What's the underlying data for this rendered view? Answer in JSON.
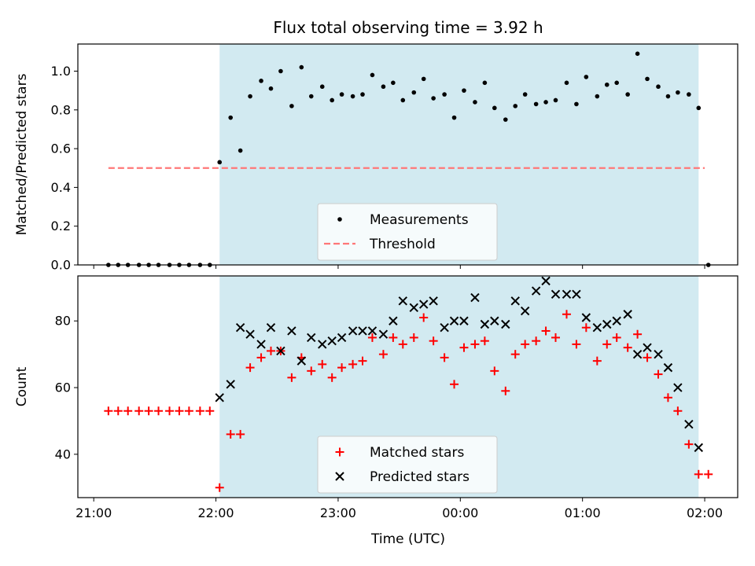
{
  "chart_data": [
    {
      "type": "scatter",
      "title": "Flux total observing time = 3.92 h",
      "xlabel": "",
      "ylabel": "Matched/Predicted stars",
      "ylim": [
        0,
        1.14
      ],
      "yticks": [
        "0.0",
        "0.2",
        "0.4",
        "0.6",
        "0.8",
        "1.0"
      ],
      "ytick_values": [
        0,
        0.2,
        0.4,
        0.6,
        0.8,
        1.0
      ],
      "xlim_hours": [
        20.87,
        26.27
      ],
      "shaded_interval_hours": [
        22.03,
        25.95
      ],
      "shaded_color": "#add8e6",
      "legend_position": "lower-center",
      "series": [
        {
          "name": "Measurements",
          "marker": "dot",
          "color": "#000000",
          "points": [
            [
              21.12,
              0
            ],
            [
              21.2,
              0
            ],
            [
              21.28,
              0
            ],
            [
              21.37,
              0
            ],
            [
              21.45,
              0
            ],
            [
              21.53,
              0
            ],
            [
              21.62,
              0
            ],
            [
              21.7,
              0
            ],
            [
              21.78,
              0
            ],
            [
              21.87,
              0
            ],
            [
              21.95,
              0
            ],
            [
              22.03,
              0.53
            ],
            [
              22.12,
              0.76
            ],
            [
              22.2,
              0.59
            ],
            [
              22.28,
              0.87
            ],
            [
              22.37,
              0.95
            ],
            [
              22.45,
              0.91
            ],
            [
              22.53,
              1.0
            ],
            [
              22.62,
              0.82
            ],
            [
              22.7,
              1.02
            ],
            [
              22.78,
              0.87
            ],
            [
              22.87,
              0.92
            ],
            [
              22.95,
              0.85
            ],
            [
              23.03,
              0.88
            ],
            [
              23.12,
              0.87
            ],
            [
              23.2,
              0.88
            ],
            [
              23.28,
              0.98
            ],
            [
              23.37,
              0.92
            ],
            [
              23.45,
              0.94
            ],
            [
              23.53,
              0.85
            ],
            [
              23.62,
              0.89
            ],
            [
              23.7,
              0.96
            ],
            [
              23.78,
              0.86
            ],
            [
              23.87,
              0.88
            ],
            [
              23.95,
              0.76
            ],
            [
              24.03,
              0.9
            ],
            [
              24.12,
              0.84
            ],
            [
              24.2,
              0.94
            ],
            [
              24.28,
              0.81
            ],
            [
              24.37,
              0.75
            ],
            [
              24.45,
              0.82
            ],
            [
              24.53,
              0.88
            ],
            [
              24.62,
              0.83
            ],
            [
              24.7,
              0.84
            ],
            [
              24.78,
              0.85
            ],
            [
              24.87,
              0.94
            ],
            [
              24.95,
              0.83
            ],
            [
              25.03,
              0.97
            ],
            [
              25.12,
              0.87
            ],
            [
              25.2,
              0.93
            ],
            [
              25.28,
              0.94
            ],
            [
              25.37,
              0.88
            ],
            [
              25.45,
              1.09
            ],
            [
              25.53,
              0.96
            ],
            [
              25.62,
              0.92
            ],
            [
              25.7,
              0.87
            ],
            [
              25.78,
              0.89
            ],
            [
              25.87,
              0.88
            ],
            [
              25.95,
              0.81
            ],
            [
              26.03,
              0
            ]
          ]
        },
        {
          "name": "Threshold",
          "style": "dashed-line",
          "color": "#ff7777",
          "points": [
            [
              21.12,
              0.5
            ],
            [
              26.0,
              0.5
            ]
          ]
        }
      ]
    },
    {
      "type": "scatter",
      "title": "",
      "xlabel": "Time (UTC)",
      "ylabel": "Count",
      "ylim": [
        27,
        93.5
      ],
      "yticks": [
        "40",
        "60",
        "80"
      ],
      "ytick_values": [
        40,
        60,
        80
      ],
      "xticks": [
        "21:00",
        "22:00",
        "23:00",
        "00:00",
        "01:00",
        "02:00"
      ],
      "xtick_values": [
        21,
        22,
        23,
        24,
        25,
        26
      ],
      "xlim_hours": [
        20.87,
        26.27
      ],
      "shaded_interval_hours": [
        22.03,
        25.95
      ],
      "shaded_color": "#add8e6",
      "legend_position": "lower-center",
      "series": [
        {
          "name": "Matched stars",
          "marker": "plus",
          "color": "#ff0000",
          "points": [
            [
              21.12,
              53
            ],
            [
              21.2,
              53
            ],
            [
              21.28,
              53
            ],
            [
              21.37,
              53
            ],
            [
              21.45,
              53
            ],
            [
              21.53,
              53
            ],
            [
              21.62,
              53
            ],
            [
              21.7,
              53
            ],
            [
              21.78,
              53
            ],
            [
              21.87,
              53
            ],
            [
              21.95,
              53
            ],
            [
              22.03,
              30
            ],
            [
              22.12,
              46
            ],
            [
              22.2,
              46
            ],
            [
              22.28,
              66
            ],
            [
              22.37,
              69
            ],
            [
              22.45,
              71
            ],
            [
              22.53,
              71
            ],
            [
              22.62,
              63
            ],
            [
              22.7,
              69
            ],
            [
              22.78,
              65
            ],
            [
              22.87,
              67
            ],
            [
              22.95,
              63
            ],
            [
              23.03,
              66
            ],
            [
              23.12,
              67
            ],
            [
              23.2,
              68
            ],
            [
              23.28,
              75
            ],
            [
              23.37,
              70
            ],
            [
              23.45,
              75
            ],
            [
              23.53,
              73
            ],
            [
              23.62,
              75
            ],
            [
              23.7,
              81
            ],
            [
              23.78,
              74
            ],
            [
              23.87,
              69
            ],
            [
              23.95,
              61
            ],
            [
              24.03,
              72
            ],
            [
              24.12,
              73
            ],
            [
              24.2,
              74
            ],
            [
              24.28,
              65
            ],
            [
              24.37,
              59
            ],
            [
              24.45,
              70
            ],
            [
              24.53,
              73
            ],
            [
              24.62,
              74
            ],
            [
              24.7,
              77
            ],
            [
              24.78,
              75
            ],
            [
              24.87,
              82
            ],
            [
              24.95,
              73
            ],
            [
              25.03,
              78
            ],
            [
              25.12,
              68
            ],
            [
              25.2,
              73
            ],
            [
              25.28,
              75
            ],
            [
              25.37,
              72
            ],
            [
              25.45,
              76
            ],
            [
              25.53,
              69
            ],
            [
              25.62,
              64
            ],
            [
              25.7,
              57
            ],
            [
              25.78,
              53
            ],
            [
              25.87,
              43
            ],
            [
              25.95,
              34
            ],
            [
              26.03,
              34
            ]
          ]
        },
        {
          "name": "Predicted stars",
          "marker": "x",
          "color": "#000000",
          "points": [
            [
              22.03,
              57
            ],
            [
              22.12,
              61
            ],
            [
              22.2,
              78
            ],
            [
              22.28,
              76
            ],
            [
              22.37,
              73
            ],
            [
              22.45,
              78
            ],
            [
              22.53,
              71
            ],
            [
              22.62,
              77
            ],
            [
              22.7,
              68
            ],
            [
              22.78,
              75
            ],
            [
              22.87,
              73
            ],
            [
              22.95,
              74
            ],
            [
              23.03,
              75
            ],
            [
              23.12,
              77
            ],
            [
              23.2,
              77
            ],
            [
              23.28,
              77
            ],
            [
              23.37,
              76
            ],
            [
              23.45,
              80
            ],
            [
              23.53,
              86
            ],
            [
              23.62,
              84
            ],
            [
              23.7,
              85
            ],
            [
              23.78,
              86
            ],
            [
              23.87,
              78
            ],
            [
              23.95,
              80
            ],
            [
              24.03,
              80
            ],
            [
              24.12,
              87
            ],
            [
              24.2,
              79
            ],
            [
              24.28,
              80
            ],
            [
              24.37,
              79
            ],
            [
              24.45,
              86
            ],
            [
              24.53,
              83
            ],
            [
              24.62,
              89
            ],
            [
              24.7,
              92
            ],
            [
              24.78,
              88
            ],
            [
              24.87,
              88
            ],
            [
              24.95,
              88
            ],
            [
              25.03,
              81
            ],
            [
              25.12,
              78
            ],
            [
              25.2,
              79
            ],
            [
              25.28,
              80
            ],
            [
              25.37,
              82
            ],
            [
              25.45,
              70
            ],
            [
              25.53,
              72
            ],
            [
              25.62,
              70
            ],
            [
              25.7,
              66
            ],
            [
              25.78,
              60
            ],
            [
              25.87,
              49
            ],
            [
              25.95,
              42
            ]
          ]
        }
      ]
    }
  ]
}
